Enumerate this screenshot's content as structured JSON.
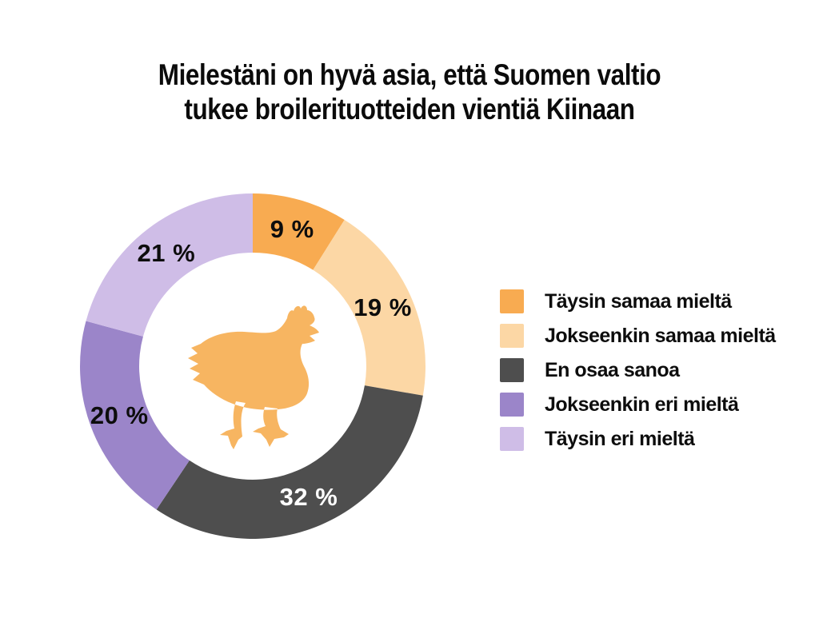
{
  "page": {
    "background": "#FFFFFF",
    "text_color": "#0D0D0D"
  },
  "header": {
    "title_line1": "Mielestäni on hyvä asia, että Suomen valtio",
    "title_line2": "tukee broilerituotteiden vientiä Kiinaan"
  },
  "chart_data": {
    "type": "pie",
    "subtype": "donut",
    "title": "Mielestäni on hyvä asia, että Suomen valtio tukee broilerituotteiden vientiä Kiinaan",
    "categories": [
      "Täysin samaa mieltä",
      "Jokseenkin samaa mieltä",
      "En osaa sanoa",
      "Jokseenkin eri mieltä",
      "Täysin eri mieltä"
    ],
    "values": [
      9,
      19,
      32,
      20,
      21
    ],
    "value_labels": [
      "9 %",
      "19 %",
      "32 %",
      "20 %",
      "21 %"
    ],
    "colors": [
      "#F8AB51",
      "#FCD7A5",
      "#4E4E4E",
      "#9B85C9",
      "#CFBDE7"
    ],
    "value_label_colors": [
      "#0D0D0D",
      "#0D0D0D",
      "#FFFFFF",
      "#0D0D0D",
      "#0D0D0D"
    ],
    "start_angle_deg": 0,
    "direction": "clockwise",
    "legend_position": "right",
    "hole_color": "#FFFFFF",
    "center_icon": "chicken-silhouette",
    "center_icon_color": "#F7B561"
  }
}
